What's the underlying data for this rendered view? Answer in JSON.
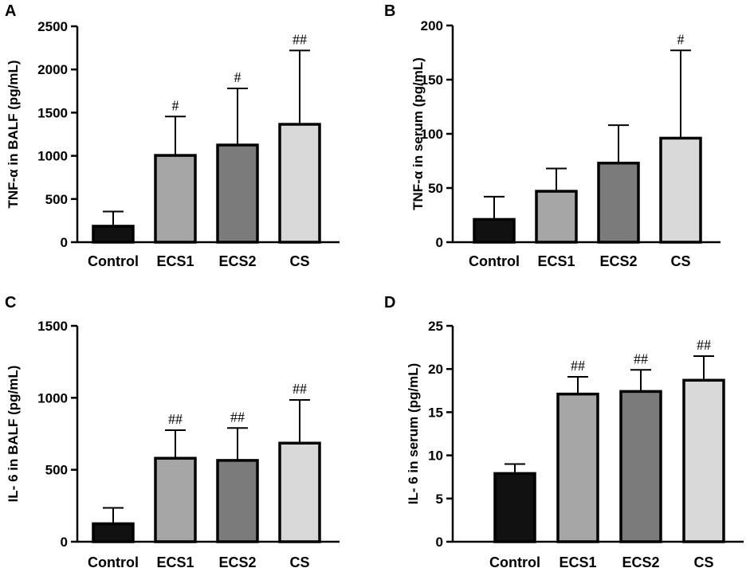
{
  "figure": {
    "colors": {
      "Control": "#111111",
      "ECS1": "#a6a6a6",
      "ECS2": "#7b7b7b",
      "CS": "#d9d9d9",
      "outline": "#000000"
    }
  },
  "chart_data": [
    {
      "panel": "A",
      "type": "bar",
      "categories": [
        "Control",
        "ECS1",
        "ECS2",
        "CS"
      ],
      "values": [
        185,
        1005,
        1125,
        1365
      ],
      "error_upper": [
        355,
        1455,
        1780,
        2220
      ],
      "significance": [
        "",
        "#",
        "#",
        "##"
      ],
      "ylabel": "TNF-α in BALF (pg/mL)",
      "ylim": [
        0,
        2500
      ],
      "yticks": [
        0,
        500,
        1000,
        1500,
        2000,
        2500
      ]
    },
    {
      "panel": "B",
      "type": "bar",
      "categories": [
        "Control",
        "ECS1",
        "ECS2",
        "CS"
      ],
      "values": [
        21,
        47,
        73,
        96
      ],
      "error_upper": [
        42,
        68,
        108,
        177
      ],
      "significance": [
        "",
        "",
        "",
        "#"
      ],
      "ylabel": "TNF-α  in serum (pg/mL)",
      "ylim": [
        0,
        200
      ],
      "yticks": [
        0,
        50,
        100,
        150,
        200
      ]
    },
    {
      "panel": "C",
      "type": "bar",
      "categories": [
        "Control",
        "ECS1",
        "ECS2",
        "CS"
      ],
      "values": [
        125,
        580,
        565,
        685
      ],
      "error_upper": [
        235,
        775,
        790,
        985
      ],
      "significance": [
        "",
        "##",
        "##",
        "##"
      ],
      "ylabel": "IL- 6 in BALF (pg/mL)",
      "ylim": [
        0,
        1500
      ],
      "yticks": [
        0,
        500,
        1000,
        1500
      ]
    },
    {
      "panel": "D",
      "type": "bar",
      "categories": [
        "Control",
        "ECS1",
        "ECS2",
        "CS"
      ],
      "values": [
        7.9,
        17.1,
        17.4,
        18.7
      ],
      "error_upper": [
        9.0,
        19.1,
        19.9,
        21.5
      ],
      "significance": [
        "",
        "##",
        "##",
        "##"
      ],
      "ylabel": "IL- 6 in serum (pg/mL)",
      "ylim": [
        0,
        25
      ],
      "yticks": [
        0,
        5,
        10,
        15,
        20,
        25
      ]
    }
  ]
}
